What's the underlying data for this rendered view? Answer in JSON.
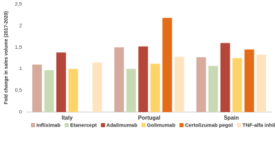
{
  "chart_data": {
    "type": "bar",
    "y_label": "Fold change in sales volume (2017-2020)",
    "categories": [
      "Italy",
      "Portugal",
      "Spain"
    ],
    "series": [
      {
        "name": "Infliximab",
        "color": "#d6ab9d",
        "values": [
          1.1,
          1.5,
          1.27
        ]
      },
      {
        "name": "Etanercept",
        "color": "#c8dab4",
        "values": [
          0.97,
          1.0,
          1.07
        ]
      },
      {
        "name": "Adalimumab",
        "color": "#b4473a",
        "values": [
          1.38,
          1.52,
          1.6
        ]
      },
      {
        "name": "Golimumab",
        "color": "#fcd46a",
        "values": [
          1.0,
          1.12,
          1.25
        ]
      },
      {
        "name": "Certolizumab pegol",
        "color": "#e46c18",
        "values": [
          null,
          2.18,
          1.45
        ]
      },
      {
        "name": "TNF-alfa inhibitors",
        "color": "#fde4bf",
        "values": [
          1.15,
          1.28,
          1.33
        ]
      }
    ],
    "ylim": [
      0,
      2.5
    ],
    "yticks": [
      0,
      {
        "value": 0.5,
        "label": "0,5"
      },
      1,
      {
        "value": 1.5,
        "label": "1,5"
      },
      2,
      {
        "value": 2.5,
        "label": "2,5"
      }
    ],
    "grid": false
  }
}
